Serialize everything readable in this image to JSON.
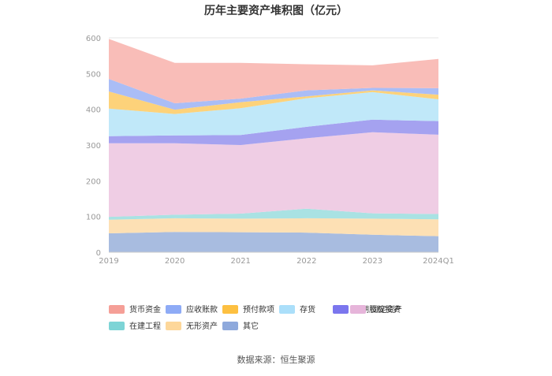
{
  "chart_data": {
    "type": "area",
    "stacked": true,
    "title": "历年主要资产堆积图（亿元）",
    "source": "数据来源：恒生聚源",
    "x": [
      "2019",
      "2020",
      "2021",
      "2022",
      "2023",
      "2024Q1"
    ],
    "ylim": [
      0,
      600
    ],
    "yticks": [
      "0",
      "100",
      "200",
      "300",
      "400",
      "500",
      "600"
    ],
    "grid": true,
    "legend_position": "bottom",
    "series": [
      {
        "name": "其它",
        "color": "#a8bce0",
        "values": [
          53,
          57,
          56,
          55,
          49,
          45
        ]
      },
      {
        "name": "无形资产",
        "color": "#fde0b4",
        "values": [
          38,
          38,
          38,
          40,
          45,
          47
        ]
      },
      {
        "name": "在建工程",
        "color": "#a9e2e3",
        "values": [
          8,
          10,
          14,
          27,
          15,
          15
        ]
      },
      {
        "name": "固定资产",
        "color": "#efcde4",
        "values": [
          206,
          200,
          192,
          197,
          227,
          222
        ]
      },
      {
        "name": "长期股权投资",
        "color": "#a5a2f0",
        "values": [
          20,
          22,
          28,
          32,
          35,
          38
        ]
      },
      {
        "name": "存货",
        "color": "#c0e8f9",
        "values": [
          77,
          60,
          75,
          80,
          77,
          61
        ]
      },
      {
        "name": "预付款项",
        "color": "#fdd27a",
        "values": [
          48,
          12,
          17,
          5,
          5,
          13
        ]
      },
      {
        "name": "应收账款",
        "color": "#aabdf6",
        "values": [
          35,
          18,
          10,
          17,
          7,
          18
        ]
      },
      {
        "name": "货币资金",
        "color": "#f9bdb8",
        "values": [
          112,
          113,
          100,
          73,
          63,
          82
        ]
      }
    ],
    "legend": [
      {
        "name": "货币资金",
        "color": "#f59f97"
      },
      {
        "name": "应收账款",
        "color": "#8eabf6"
      },
      {
        "name": "预付款项",
        "color": "#fdc041"
      },
      {
        "name": "存货",
        "color": "#abdffa"
      },
      {
        "name": "长期股权投资",
        "color": "#7b76ee"
      },
      {
        "name": "固定资产",
        "color": "#e6b5da"
      },
      {
        "name": "在建工程",
        "color": "#7dd4d6"
      },
      {
        "name": "无形资产",
        "color": "#fdd79a"
      },
      {
        "name": "其它",
        "color": "#8ea9dc"
      }
    ]
  }
}
